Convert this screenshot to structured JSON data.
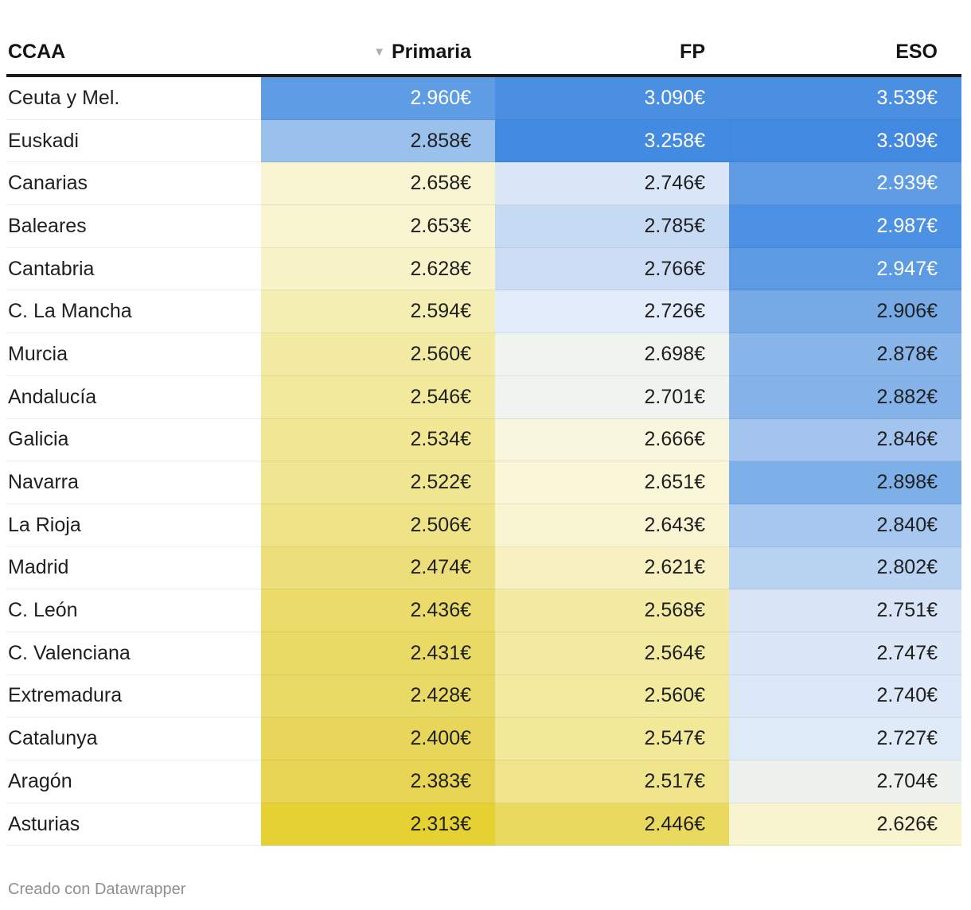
{
  "header": {
    "sort_icon_glyph": "▼",
    "columns": [
      {
        "key": "ccaa",
        "label": "CCAA",
        "align": "left",
        "sorted": false
      },
      {
        "key": "primaria",
        "label": "Primaria",
        "align": "right",
        "sorted": true
      },
      {
        "key": "fp",
        "label": "FP",
        "align": "right",
        "sorted": false
      },
      {
        "key": "eso",
        "label": "ESO",
        "align": "right",
        "sorted": false
      }
    ]
  },
  "rows": [
    {
      "ccaa": "Ceuta y Mel.",
      "cells": [
        {
          "text": "2.960€",
          "bg": "#5e9de4",
          "fg": "#ffffff"
        },
        {
          "text": "3.090€",
          "bg": "#4a8fe2",
          "fg": "#ffffff"
        },
        {
          "text": "3.539€",
          "bg": "#4a8fe2",
          "fg": "#ffffff"
        }
      ]
    },
    {
      "ccaa": "Euskadi",
      "cells": [
        {
          "text": "2.858€",
          "bg": "#9ac1ec",
          "fg": "#1f1f1f"
        },
        {
          "text": "3.258€",
          "bg": "#438be1",
          "fg": "#ffffff"
        },
        {
          "text": "3.309€",
          "bg": "#4289e1",
          "fg": "#ffffff"
        }
      ]
    },
    {
      "ccaa": "Canarias",
      "cells": [
        {
          "text": "2.658€",
          "bg": "#f9f5d3",
          "fg": "#1f1f1f"
        },
        {
          "text": "2.746€",
          "bg": "#d9e7f8",
          "fg": "#1f1f1f"
        },
        {
          "text": "2.939€",
          "bg": "#5f9ce4",
          "fg": "#ffffff"
        }
      ]
    },
    {
      "ccaa": "Baleares",
      "cells": [
        {
          "text": "2.653€",
          "bg": "#f9f5d1",
          "fg": "#1f1f1f"
        },
        {
          "text": "2.785€",
          "bg": "#c6daf4",
          "fg": "#1f1f1f"
        },
        {
          "text": "2.987€",
          "bg": "#4c91e3",
          "fg": "#ffffff"
        }
      ]
    },
    {
      "ccaa": "Cantabria",
      "cells": [
        {
          "text": "2.628€",
          "bg": "#f8f3c8",
          "fg": "#1f1f1f"
        },
        {
          "text": "2.766€",
          "bg": "#cdddf5",
          "fg": "#1f1f1f"
        },
        {
          "text": "2.947€",
          "bg": "#5c9ae4",
          "fg": "#ffffff"
        }
      ]
    },
    {
      "ccaa": "C. La Mancha",
      "cells": [
        {
          "text": "2.594€",
          "bg": "#f5eeb2",
          "fg": "#1f1f1f"
        },
        {
          "text": "2.726€",
          "bg": "#e3ecfa",
          "fg": "#1f1f1f"
        },
        {
          "text": "2.906€",
          "bg": "#76aae7",
          "fg": "#1f1f1f"
        }
      ]
    },
    {
      "ccaa": "Murcia",
      "cells": [
        {
          "text": "2.560€",
          "bg": "#f3eba4",
          "fg": "#1f1f1f"
        },
        {
          "text": "2.698€",
          "bg": "#f0f4ee",
          "fg": "#1f1f1f"
        },
        {
          "text": "2.878€",
          "bg": "#88b5ea",
          "fg": "#1f1f1f"
        }
      ]
    },
    {
      "ccaa": "Andalucía",
      "cells": [
        {
          "text": "2.546€",
          "bg": "#f2e99c",
          "fg": "#1f1f1f"
        },
        {
          "text": "2.701€",
          "bg": "#eff4f0",
          "fg": "#1f1f1f"
        },
        {
          "text": "2.882€",
          "bg": "#85b3e9",
          "fg": "#1f1f1f"
        }
      ]
    },
    {
      "ccaa": "Galicia",
      "cells": [
        {
          "text": "2.534€",
          "bg": "#f1e795",
          "fg": "#1f1f1f"
        },
        {
          "text": "2.666€",
          "bg": "#f8f6df",
          "fg": "#1f1f1f"
        },
        {
          "text": "2.846€",
          "bg": "#a2c4ee",
          "fg": "#1f1f1f"
        }
      ]
    },
    {
      "ccaa": "Navarra",
      "cells": [
        {
          "text": "2.522€",
          "bg": "#f0e590",
          "fg": "#1f1f1f"
        },
        {
          "text": "2.651€",
          "bg": "#faf6d8",
          "fg": "#1f1f1f"
        },
        {
          "text": "2.898€",
          "bg": "#7db0e8",
          "fg": "#1f1f1f"
        }
      ]
    },
    {
      "ccaa": "La Rioja",
      "cells": [
        {
          "text": "2.506€",
          "bg": "#efe388",
          "fg": "#1f1f1f"
        },
        {
          "text": "2.643€",
          "bg": "#f9f5d3",
          "fg": "#1f1f1f"
        },
        {
          "text": "2.840€",
          "bg": "#a6c7ef",
          "fg": "#1f1f1f"
        }
      ]
    },
    {
      "ccaa": "Madrid",
      "cells": [
        {
          "text": "2.474€",
          "bg": "#ecdf7a",
          "fg": "#1f1f1f"
        },
        {
          "text": "2.621€",
          "bg": "#f7f1c1",
          "fg": "#1f1f1f"
        },
        {
          "text": "2.802€",
          "bg": "#b9d3f2",
          "fg": "#1f1f1f"
        }
      ]
    },
    {
      "ccaa": "C. León",
      "cells": [
        {
          "text": "2.436€",
          "bg": "#eadb6a",
          "fg": "#1f1f1f"
        },
        {
          "text": "2.568€",
          "bg": "#f3eba3",
          "fg": "#1f1f1f"
        },
        {
          "text": "2.751€",
          "bg": "#d9e5f7",
          "fg": "#1f1f1f"
        }
      ]
    },
    {
      "ccaa": "C. Valenciana",
      "cells": [
        {
          "text": "2.431€",
          "bg": "#e9da66",
          "fg": "#1f1f1f"
        },
        {
          "text": "2.564€",
          "bg": "#f2eaa1",
          "fg": "#1f1f1f"
        },
        {
          "text": "2.747€",
          "bg": "#dbe6f7",
          "fg": "#1f1f1f"
        }
      ]
    },
    {
      "ccaa": "Extremadura",
      "cells": [
        {
          "text": "2.428€",
          "bg": "#e9d965",
          "fg": "#1f1f1f"
        },
        {
          "text": "2.560€",
          "bg": "#f2ea9e",
          "fg": "#1f1f1f"
        },
        {
          "text": "2.740€",
          "bg": "#dce8f8",
          "fg": "#1f1f1f"
        }
      ]
    },
    {
      "ccaa": "Catalunya",
      "cells": [
        {
          "text": "2.400€",
          "bg": "#e7d65a",
          "fg": "#1f1f1f"
        },
        {
          "text": "2.547€",
          "bg": "#f1e898",
          "fg": "#1f1f1f"
        },
        {
          "text": "2.727€",
          "bg": "#dfeaf9",
          "fg": "#1f1f1f"
        }
      ]
    },
    {
      "ccaa": "Aragón",
      "cells": [
        {
          "text": "2.383€",
          "bg": "#e6d452",
          "fg": "#1f1f1f"
        },
        {
          "text": "2.517€",
          "bg": "#efe48b",
          "fg": "#1f1f1f"
        },
        {
          "text": "2.704€",
          "bg": "#edf2ee",
          "fg": "#1f1f1f"
        }
      ]
    },
    {
      "ccaa": "Asturias",
      "cells": [
        {
          "text": "2.313€",
          "bg": "#e5d232",
          "fg": "#1f1f1f"
        },
        {
          "text": "2.446€",
          "bg": "#e9d95e",
          "fg": "#1f1f1f"
        },
        {
          "text": "2.626€",
          "bg": "#f8f4cf",
          "fg": "#1f1f1f"
        }
      ]
    }
  ],
  "footer": {
    "credit": "Creado con Datawrapper"
  },
  "colors": {
    "header_text": "#141414",
    "header_border": "#1c1c1c",
    "sort_icon": "#aeaeae",
    "row_divider": "#ececec",
    "credit_text": "#8f8f8f",
    "heatmap_low": "#e3cf33",
    "heatmap_mid": "#f6f6ee",
    "heatmap_high": "#4a8fe2"
  },
  "chart_data": {
    "type": "table",
    "title": "",
    "categories": [
      "Ceuta y Mel.",
      "Euskadi",
      "Canarias",
      "Baleares",
      "Cantabria",
      "C. La Mancha",
      "Murcia",
      "Andalucía",
      "Galicia",
      "Navarra",
      "La Rioja",
      "Madrid",
      "C. León",
      "C. Valenciana",
      "Extremadura",
      "Catalunya",
      "Aragón",
      "Asturias"
    ],
    "series": [
      {
        "name": "Primaria",
        "values": [
          2960,
          2858,
          2658,
          2653,
          2628,
          2594,
          2560,
          2546,
          2534,
          2522,
          2506,
          2474,
          2436,
          2431,
          2428,
          2400,
          2383,
          2313
        ]
      },
      {
        "name": "FP",
        "values": [
          3090,
          3258,
          2746,
          2785,
          2766,
          2726,
          2698,
          2701,
          2666,
          2651,
          2643,
          2621,
          2568,
          2564,
          2560,
          2547,
          2517,
          2446
        ]
      },
      {
        "name": "ESO",
        "values": [
          3539,
          3309,
          2939,
          2987,
          2947,
          2906,
          2878,
          2882,
          2846,
          2898,
          2840,
          2802,
          2751,
          2747,
          2740,
          2727,
          2704,
          2626
        ]
      }
    ],
    "unit": "€",
    "value_format": "dot-thousands with trailing €",
    "sort": {
      "column": "Primaria",
      "direction": "desc"
    },
    "heatmap_scale": {
      "low": "#e3cf33",
      "mid": "#f6f6ee",
      "high": "#4a8fe2"
    }
  }
}
